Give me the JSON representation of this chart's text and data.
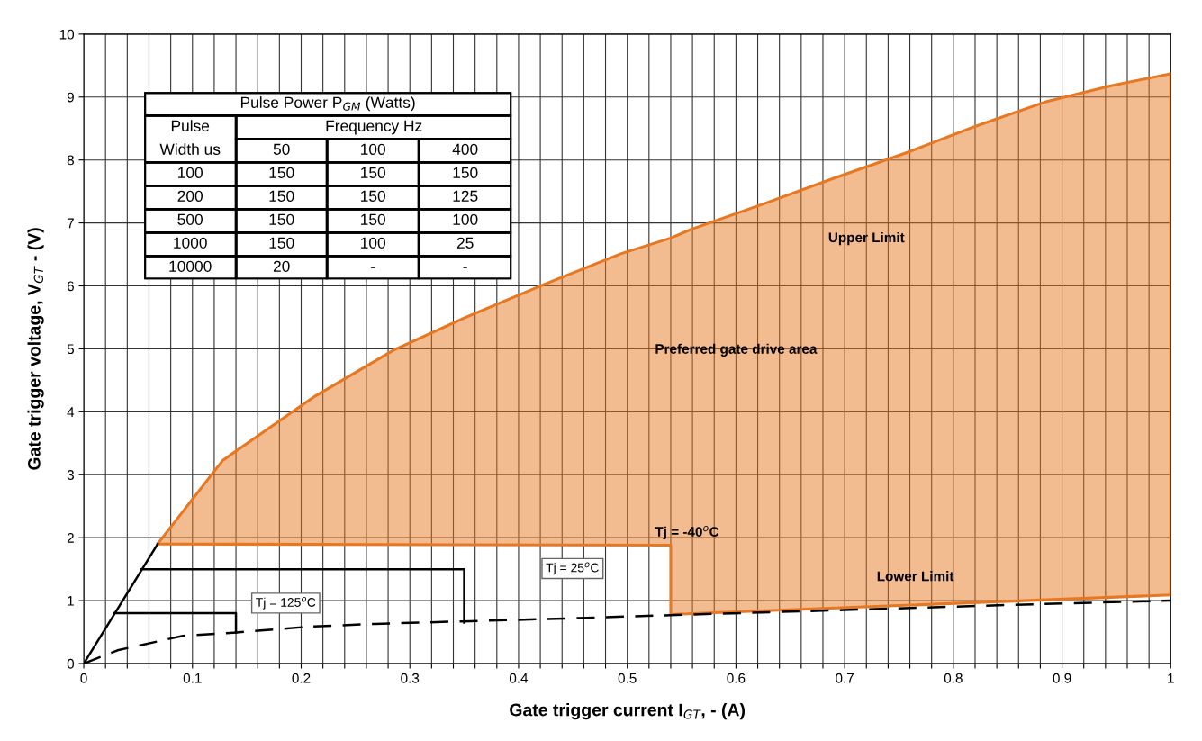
{
  "chart_data": [
    {
      "type": "line",
      "xlabel": "Gate trigger current I$_{GT}$, - (A)",
      "ylabel": "Gate trigger voltage, V$_{GT}$ - (V)",
      "xlim": [
        0,
        1
      ],
      "ylim": [
        0,
        10
      ],
      "xticks": [
        0,
        {
          "value": 0.02,
          "label": null
        },
        {
          "value": 0.04,
          "label": null
        },
        {
          "value": 0.06,
          "label": null
        },
        {
          "value": 0.08,
          "label": null
        },
        0.1,
        {
          "value": 0.12,
          "label": null
        },
        {
          "value": 0.14,
          "label": null
        },
        {
          "value": 0.16,
          "label": null
        },
        {
          "value": 0.18,
          "label": null
        },
        0.2,
        {
          "value": 0.22,
          "label": null
        },
        {
          "value": 0.24,
          "label": null
        },
        {
          "value": 0.26,
          "label": null
        },
        {
          "value": 0.28,
          "label": null
        },
        0.3,
        {
          "value": 0.32,
          "label": null
        },
        {
          "value": 0.34,
          "label": null
        },
        {
          "value": 0.36,
          "label": null
        },
        {
          "value": 0.38,
          "label": null
        },
        0.4,
        {
          "value": 0.42,
          "label": null
        },
        {
          "value": 0.44,
          "label": null
        },
        {
          "value": 0.46,
          "label": null
        },
        {
          "value": 0.48,
          "label": null
        },
        0.5,
        {
          "value": 0.52,
          "label": null
        },
        {
          "value": 0.54,
          "label": null
        },
        {
          "value": 0.56,
          "label": null
        },
        {
          "value": 0.58,
          "label": null
        },
        0.6,
        {
          "value": 0.62,
          "label": null
        },
        {
          "value": 0.64,
          "label": null
        },
        {
          "value": 0.66,
          "label": null
        },
        {
          "value": 0.68,
          "label": null
        },
        0.7,
        {
          "value": 0.72,
          "label": null
        },
        {
          "value": 0.74,
          "label": null
        },
        {
          "value": 0.76,
          "label": null
        },
        {
          "value": 0.78,
          "label": null
        },
        0.8,
        {
          "value": 0.82,
          "label": null
        },
        {
          "value": 0.84,
          "label": null
        },
        {
          "value": 0.86,
          "label": null
        },
        {
          "value": 0.88,
          "label": null
        },
        0.9,
        {
          "value": 0.92,
          "label": null
        },
        {
          "value": 0.94,
          "label": null
        },
        {
          "value": 0.96,
          "label": null
        },
        {
          "value": 0.98,
          "label": null
        },
        1
      ],
      "yticks": [
        0,
        1,
        2,
        3,
        4,
        5,
        6,
        7,
        8,
        9,
        10
      ],
      "grid": true,
      "marker": "none",
      "legend": false,
      "series": [
        {
          "type": "line",
          "color": "#e87722",
          "line_style": "solid",
          "x": [
            0.068,
            0.076,
            0.128,
            0.213,
            0.285,
            0.35,
            0.423,
            0.494,
            0.54,
            0.54,
            0.559,
            0.625,
            0.69,
            0.756,
            0.821,
            0.886,
            0.945,
            1.0
          ],
          "values": [
            1.9,
            2.08,
            3.23,
            4.25,
            4.98,
            5.49,
            6.02,
            6.51,
            6.76,
            6.76,
            6.9,
            7.3,
            7.71,
            8.11,
            8.54,
            8.93,
            9.18,
            9.37
          ],
          "upper": [
            1.9,
            2.08,
            3.23,
            4.25,
            4.98,
            5.49,
            6.02,
            6.51,
            6.76,
            6.76,
            6.9,
            7.3,
            7.71,
            8.11,
            8.54,
            8.93,
            9.18,
            9.37
          ],
          "lower": [
            1.9,
            1.9,
            1.9,
            1.9,
            1.89,
            1.89,
            1.89,
            1.88,
            1.88,
            0.78,
            0.79,
            0.84,
            0.88,
            0.93,
            0.97,
            1.01,
            1.05,
            1.09
          ]
        },
        {
          "type": "line",
          "color": "#e87722",
          "line_style": "solid",
          "x": [
            0.068,
            0.54,
            0.54,
            1.0,
            1.0
          ],
          "values": [
            1.9,
            1.88,
            0.78,
            1.09,
            9.37
          ]
        },
        {
          "type": "line",
          "color": "#000000",
          "line_style": "solid",
          "x": [
            0,
            0.068
          ],
          "values": [
            0,
            1.9
          ]
        },
        {
          "type": "line",
          "color": "#000000",
          "line_style": "solid",
          "x": [
            0.028,
            0.14,
            0.14
          ],
          "values": [
            0.8,
            0.8,
            0.49
          ]
        },
        {
          "type": "line",
          "color": "#000000",
          "line_style": "solid",
          "x": [
            0.053,
            0.35,
            0.35
          ],
          "values": [
            1.5,
            1.5,
            0.65
          ]
        },
        {
          "type": "line",
          "color": "#000000",
          "line_style": "dashed",
          "x": [
            0,
            0.031,
            0.091,
            0.138,
            0.21,
            0.268,
            0.349,
            0.45,
            0.54,
            0.7,
            0.85,
            1.0
          ],
          "values": [
            0,
            0.21,
            0.44,
            0.49,
            0.59,
            0.63,
            0.67,
            0.72,
            0.77,
            0.85,
            0.93,
            1.0
          ]
        }
      ],
      "annotations": [
        "Tj = 125$^{o}$C",
        "Tj = 25$^{o}$C",
        "Tj = -40$^{o}$C",
        "Upper Limit",
        "Preferred gate drive area",
        "Lower Limit"
      ]
    },
    {
      "type": "other",
      "title": "Pulse Power P$_{GM}$ (Watts)",
      "annotations": [
        "Pulse",
        "Width us",
        "Frequency Hz",
        "50",
        "100",
        "400",
        "100",
        "150",
        "150",
        "150",
        "200",
        "150",
        "150",
        "125",
        "500",
        "150",
        "150",
        "100",
        "1000",
        "150",
        "100",
        "25",
        "10000",
        "20",
        "-",
        "-"
      ]
    }
  ]
}
